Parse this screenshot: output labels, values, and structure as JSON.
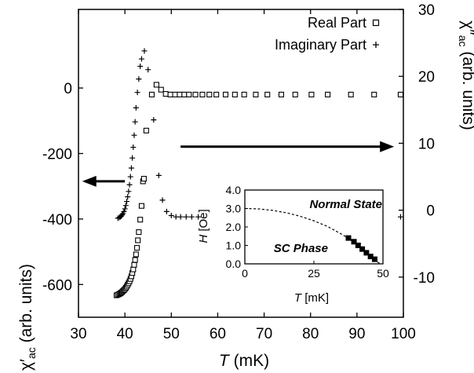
{
  "chart_data": {
    "type": "scatter",
    "xlabel": {
      "symbol": "T",
      "unit": " (mK)"
    },
    "xlim": [
      30,
      100
    ],
    "xticks": [
      "30",
      "40",
      "50",
      "60",
      "70",
      "80",
      "90",
      "100"
    ],
    "y_left": {
      "label_symbol": "χ′",
      "label_sub": "ac",
      "label_unit": " (arb. units)",
      "ylim": [
        -700,
        240
      ],
      "ticks": [
        "0",
        "-200",
        "-400",
        "-600"
      ]
    },
    "y_right": {
      "label_symbol": "χ″",
      "label_sub": "ac",
      "label_unit": " (arb. units)",
      "ylim": [
        -16,
        30
      ],
      "ticks": [
        "30",
        "20",
        "10",
        "0",
        "-10"
      ]
    },
    "legend": {
      "placement": "top-right",
      "entries": [
        {
          "label": "Real Part",
          "marker": "square"
        },
        {
          "label": "Imaginary Part",
          "marker": "plus"
        }
      ]
    },
    "series": [
      {
        "name": "Real Part",
        "axis": "left",
        "marker": "square",
        "points": [
          [
            38.2,
            -633
          ],
          [
            38.5,
            -631
          ],
          [
            38.8,
            -629
          ],
          [
            39.0,
            -627
          ],
          [
            39.2,
            -625
          ],
          [
            39.4,
            -623
          ],
          [
            39.6,
            -620
          ],
          [
            39.8,
            -617
          ],
          [
            40.0,
            -614
          ],
          [
            40.2,
            -610
          ],
          [
            40.4,
            -606
          ],
          [
            40.6,
            -601
          ],
          [
            40.8,
            -596
          ],
          [
            41.0,
            -590
          ],
          [
            41.2,
            -583
          ],
          [
            41.4,
            -575
          ],
          [
            41.6,
            -565
          ],
          [
            41.8,
            -554
          ],
          [
            42.0,
            -540
          ],
          [
            42.2,
            -525
          ],
          [
            42.4,
            -508
          ],
          [
            42.6,
            -488
          ],
          [
            42.8,
            -465
          ],
          [
            43.0,
            -440
          ],
          [
            43.3,
            -402
          ],
          [
            43.6,
            -360
          ],
          [
            43.9,
            -285
          ],
          [
            44.1,
            -277
          ],
          [
            44.6,
            -130
          ],
          [
            45.8,
            -20
          ],
          [
            46.8,
            10
          ],
          [
            47.8,
            -5
          ],
          [
            48.8,
            -18
          ],
          [
            49.8,
            -20
          ],
          [
            50.8,
            -20
          ],
          [
            51.8,
            -20
          ],
          [
            52.8,
            -20
          ],
          [
            53.8,
            -20
          ],
          [
            55.2,
            -20
          ],
          [
            56.7,
            -20
          ],
          [
            58.2,
            -20
          ],
          [
            59.7,
            -20
          ],
          [
            61.7,
            -20
          ],
          [
            63.7,
            -20
          ],
          [
            65.7,
            -20
          ],
          [
            68.2,
            -20
          ],
          [
            70.7,
            -20
          ],
          [
            73.7,
            -20
          ],
          [
            76.7,
            -20
          ],
          [
            80.2,
            -20
          ],
          [
            83.7,
            -20
          ],
          [
            88.7,
            -20
          ],
          [
            93.7,
            -20
          ],
          [
            99.4,
            -20
          ]
        ]
      },
      {
        "name": "Imaginary Part",
        "axis": "right",
        "marker": "plus",
        "points": [
          [
            38.5,
            -1.2
          ],
          [
            38.8,
            -1.1
          ],
          [
            39.0,
            -1.0
          ],
          [
            39.2,
            -0.9
          ],
          [
            39.4,
            -0.7
          ],
          [
            39.6,
            -0.5
          ],
          [
            39.8,
            -0.2
          ],
          [
            40.0,
            0.2
          ],
          [
            40.2,
            0.7
          ],
          [
            40.4,
            1.3
          ],
          [
            40.6,
            2.0
          ],
          [
            40.8,
            2.8
          ],
          [
            41.0,
            3.8
          ],
          [
            41.2,
            5.0
          ],
          [
            41.4,
            6.3
          ],
          [
            41.6,
            7.8
          ],
          [
            41.8,
            9.4
          ],
          [
            42.0,
            11.2
          ],
          [
            42.2,
            13.2
          ],
          [
            42.4,
            15.3
          ],
          [
            42.7,
            17.6
          ],
          [
            43.0,
            19.6
          ],
          [
            43.3,
            21.5
          ],
          [
            43.6,
            22.6
          ],
          [
            44.2,
            23.8
          ],
          [
            45.0,
            21.0
          ],
          [
            46.2,
            13.5
          ],
          [
            47.3,
            5.2
          ],
          [
            48.1,
            1.5
          ],
          [
            49.0,
            -0.2
          ],
          [
            50.0,
            -0.8
          ],
          [
            51.0,
            -1.0
          ],
          [
            52.0,
            -1.0
          ],
          [
            53.2,
            -1.0
          ],
          [
            54.4,
            -1.0
          ],
          [
            55.8,
            -1.0
          ],
          [
            57.2,
            -1.0
          ],
          [
            58.7,
            -1.0
          ],
          [
            60.2,
            -1.0
          ],
          [
            62.2,
            -1.0
          ],
          [
            64.2,
            -1.0
          ],
          [
            66.2,
            -1.0
          ],
          [
            68.5,
            -1.0
          ],
          [
            70.7,
            -1.0
          ],
          [
            73.7,
            -1.0
          ],
          [
            76.7,
            -1.0
          ],
          [
            80.2,
            -1.0
          ],
          [
            83.7,
            -1.0
          ],
          [
            88.7,
            -1.0
          ],
          [
            93.7,
            -1.0
          ],
          [
            99.4,
            -1.0
          ]
        ]
      }
    ],
    "arrows": [
      {
        "direction": "right",
        "x_from": 52,
        "x_to": 98,
        "y_axis": "right",
        "y": 9.5
      },
      {
        "direction": "left",
        "x_from": 40,
        "x_to": 30.8,
        "y_axis": "left",
        "y": -285
      }
    ],
    "inset": {
      "xlabel": {
        "symbol": "T",
        "unit": " [mK]"
      },
      "ylabel": {
        "symbol": "H",
        "unit": " [Oe]"
      },
      "xlim": [
        0,
        50
      ],
      "ylim": [
        0,
        4
      ],
      "xticks": [
        "0",
        "25",
        "50"
      ],
      "yticks": [
        "4.0",
        "3.0",
        "2.0",
        "1.0",
        "0.0"
      ],
      "region_labels": [
        "Normal State",
        "SC Phase"
      ],
      "phase_boundary": [
        [
          0,
          3.0
        ],
        [
          5,
          2.98
        ],
        [
          10,
          2.9
        ],
        [
          15,
          2.77
        ],
        [
          20,
          2.58
        ],
        [
          25,
          2.33
        ],
        [
          30,
          2.02
        ],
        [
          35,
          1.61
        ],
        [
          37,
          1.43
        ],
        [
          40,
          1.1
        ],
        [
          42,
          0.88
        ],
        [
          44,
          0.63
        ],
        [
          46,
          0.34
        ],
        [
          48,
          0.1
        ],
        [
          49,
          0.0
        ]
      ],
      "points": [
        [
          37.5,
          1.4
        ],
        [
          39.5,
          1.2
        ],
        [
          41.0,
          1.0
        ],
        [
          42.5,
          0.8
        ],
        [
          44.0,
          0.6
        ],
        [
          45.5,
          0.4
        ],
        [
          47.0,
          0.25
        ]
      ]
    }
  }
}
